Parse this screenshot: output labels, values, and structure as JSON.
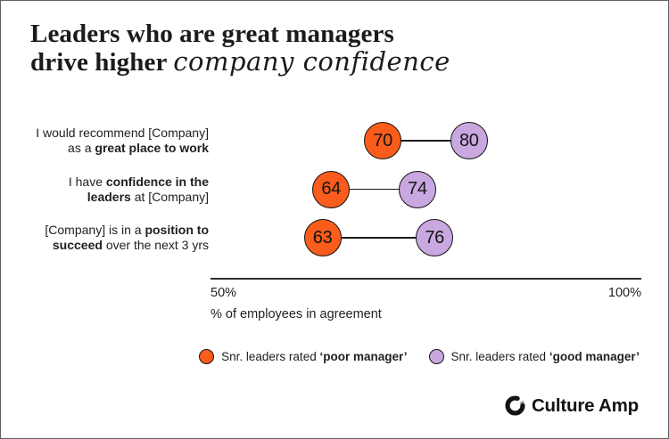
{
  "header": {
    "title_line1": "Leaders who are great managers",
    "title_line2_regular": "drive higher ",
    "title_line2_script": "company confidence"
  },
  "chart_data": {
    "type": "dumbbell",
    "title": "Leaders who are great managers drive higher company confidence",
    "xlabel": "% of employees in agreement",
    "xlim": [
      50,
      100
    ],
    "x_tick_labels": [
      "50%",
      "100%"
    ],
    "grid": false,
    "legend_position": "bottom-center",
    "categories": [
      "I would recommend [Company] as a great place to work",
      "I have confidence in the leaders at [Company]",
      "[Company] is in a position to succeed over the next 3 yrs"
    ],
    "series": [
      {
        "name": "Snr. leaders rated ‘poor manager’",
        "values": [
          70,
          64,
          63
        ],
        "color": "#F95C1B"
      },
      {
        "name": "Snr. leaders rated ‘good manager’",
        "values": [
          80,
          74,
          76
        ],
        "color": "#C9A8E1"
      }
    ],
    "rows": [
      {
        "poor": 70,
        "good": 80,
        "label_lines": [
          [
            {
              "t": "I would recommend [Company]"
            }
          ],
          [
            {
              "t": "as a "
            },
            {
              "t": "great place to work",
              "b": true
            }
          ]
        ]
      },
      {
        "poor": 64,
        "good": 74,
        "label_lines": [
          [
            {
              "t": "I have "
            },
            {
              "t": "confidence in the",
              "b": true
            }
          ],
          [
            {
              "t": "leaders",
              "b": true
            },
            {
              "t": " at [Company]"
            }
          ]
        ]
      },
      {
        "poor": 63,
        "good": 76,
        "label_lines": [
          [
            {
              "t": "[Company] is in a "
            },
            {
              "t": "position to",
              "b": true
            }
          ],
          [
            {
              "t": "succeed",
              "b": true
            },
            {
              "t": " over the next 3 yrs"
            }
          ]
        ]
      }
    ],
    "legend": [
      {
        "color": "#F95C1B",
        "regular": "Snr. leaders rated ",
        "bold": "‘poor manager’"
      },
      {
        "color": "#C9A8E1",
        "regular": "Snr. leaders rated ",
        "bold": "‘good manager’"
      }
    ]
  },
  "axis": {
    "min_label": "50%",
    "max_label": "100%",
    "title": "% of employees in agreement"
  },
  "branding": {
    "logo_text": "Culture Amp"
  }
}
